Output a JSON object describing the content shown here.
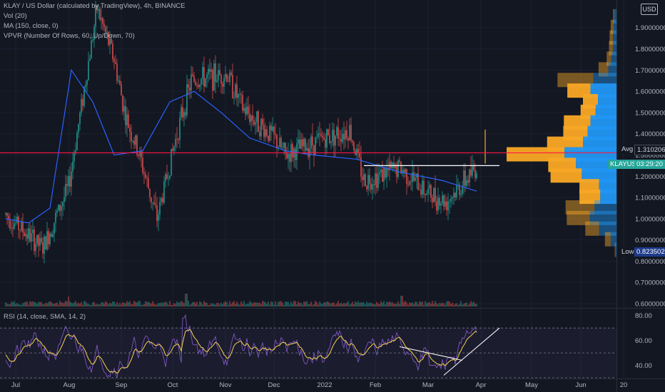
{
  "legend": {
    "title": "KLAY / US Dollar (calculated by TradingView), 4h, BINANCE",
    "vol": "Vol (20)",
    "ma": "MA (150, close, 0)",
    "vpvr": "VPVR (Number Of Rows, 60, Up/Down, 70)",
    "rsi": "RSI (14, close, SMA, 14, 2)"
  },
  "currency_label": "USD",
  "price_tags": {
    "avg_label": "Avg",
    "avg_value": "1.31020669",
    "symbol_label": "KLAYUSD",
    "countdown": "03:29:20",
    "low_label": "Low",
    "low_value": "0.82350299"
  },
  "colors": {
    "background": "#131722",
    "up": "#26a69a",
    "down": "#ef5350",
    "ma_line": "#2962ff",
    "rsi": "#7e57c2",
    "rsi_ma": "#f5d34f",
    "vpvr_up": "#2196f3",
    "vpvr_down": "#f9a825",
    "red_line": "#ff1744",
    "white_line": "#ffffff"
  },
  "chart_data": [
    {
      "type": "candlestick",
      "title": "KLAY / US Dollar (calculated by TradingView), 4h, BINANCE",
      "x_ticks": [
        "Jul",
        "Aug",
        "Sep",
        "Oct",
        "Nov",
        "Dec",
        "2022",
        "Feb",
        "Mar",
        "Apr",
        "May",
        "Jun",
        "20"
      ],
      "y_ticks": [
        "0.60000000",
        "0.70000000",
        "0.80000000",
        "0.90000000",
        "1.00000000",
        "1.10000000",
        "1.20000000",
        "1.30000000",
        "1.40000000",
        "1.50000000",
        "1.60000000",
        "1.70000000",
        "1.80000000",
        "1.90000000"
      ],
      "ylim": [
        0.58,
        2.03
      ],
      "key_points": [
        {
          "date": "Jul",
          "price": 1.02
        },
        {
          "date": "mid Jul",
          "price": 0.86
        },
        {
          "date": "late Jul",
          "price": 1.15
        },
        {
          "date": "mid Aug",
          "price": 1.99
        },
        {
          "date": "late Aug",
          "price": 1.75
        },
        {
          "date": "early Sep",
          "price": 1.48
        },
        {
          "date": "mid Sep",
          "price": 1.29
        },
        {
          "date": "late Sep",
          "price": 1.0
        },
        {
          "date": "early Oct",
          "price": 1.4
        },
        {
          "date": "mid Oct",
          "price": 1.65
        },
        {
          "date": "early Nov",
          "price": 1.68
        },
        {
          "date": "mid Nov",
          "price": 1.52
        },
        {
          "date": "early Dec",
          "price": 1.38
        },
        {
          "date": "mid Dec",
          "price": 1.3
        },
        {
          "date": "early Jan",
          "price": 1.38
        },
        {
          "date": "mid Jan",
          "price": 1.42
        },
        {
          "date": "late Jan",
          "price": 1.18
        },
        {
          "date": "mid Feb",
          "price": 1.24
        },
        {
          "date": "early Mar",
          "price": 1.12
        },
        {
          "date": "mid Mar",
          "price": 1.08
        },
        {
          "date": "late Mar",
          "price": 1.17
        },
        {
          "date": "Apr",
          "price": 1.25
        }
      ],
      "horizontal_lines": [
        {
          "label": "Avg",
          "value": 1.31020669,
          "color": "#ff1744"
        },
        {
          "label": "resistance",
          "value": 1.25,
          "color": "#ffffff"
        }
      ],
      "moving_average": {
        "name": "MA (150, close, 0)",
        "approx_values": [
          1.0,
          0.98,
          1.05,
          1.7,
          1.55,
          1.3,
          1.32,
          1.55,
          1.6,
          1.5,
          1.38,
          1.32,
          1.3,
          1.28,
          1.22,
          1.18,
          1.13
        ]
      },
      "volume_profile": [
        {
          "price": 1.95,
          "up": 0.04,
          "down": 0.02
        },
        {
          "price": 1.9,
          "up": 0.05,
          "down": 0.05
        },
        {
          "price": 1.85,
          "up": 0.06,
          "down": 0.06
        },
        {
          "price": 1.8,
          "up": 0.06,
          "down": 0.07
        },
        {
          "price": 1.75,
          "up": 0.09,
          "down": 0.08
        },
        {
          "price": 1.7,
          "up": 0.14,
          "down": 0.17
        },
        {
          "price": 1.65,
          "up": 0.4,
          "down": 0.62
        },
        {
          "price": 1.6,
          "up": 0.45,
          "down": 0.4
        },
        {
          "price": 1.55,
          "up": 0.32,
          "down": 0.26
        },
        {
          "price": 1.5,
          "up": 0.36,
          "down": 0.26
        },
        {
          "price": 1.45,
          "up": 0.45,
          "down": 0.46
        },
        {
          "price": 1.4,
          "up": 0.5,
          "down": 0.42
        },
        {
          "price": 1.35,
          "up": 0.58,
          "down": 0.62
        },
        {
          "price": 1.3,
          "up": 0.9,
          "down": 1.0
        },
        {
          "price": 1.25,
          "up": 0.7,
          "down": 0.48
        },
        {
          "price": 1.2,
          "up": 0.6,
          "down": 0.54
        },
        {
          "price": 1.15,
          "up": 0.3,
          "down": 0.34
        },
        {
          "price": 1.1,
          "up": 0.28,
          "down": 0.36
        },
        {
          "price": 1.05,
          "up": 0.38,
          "down": 0.5
        },
        {
          "price": 1.0,
          "up": 0.46,
          "down": 0.4
        },
        {
          "price": 0.95,
          "up": 0.3,
          "down": 0.24
        },
        {
          "price": 0.9,
          "up": 0.1,
          "down": 0.1
        },
        {
          "price": 0.85,
          "up": 0.02,
          "down": 0.01
        }
      ]
    },
    {
      "type": "volume",
      "title": "Vol (20)",
      "note": "volume histogram with spikes near mid Aug, early Oct and late Feb"
    },
    {
      "type": "line",
      "title": "RSI (14, close, SMA, 14, 2)",
      "y_ticks": [
        "40.00",
        "60.00",
        "80.00"
      ],
      "ylim": [
        30,
        85
      ],
      "bands": [
        30,
        50,
        70
      ],
      "trendlines": [
        {
          "name": "descending",
          "from": {
            "date": "Feb",
            "rsi": 55
          },
          "to": {
            "date": "mid Mar",
            "rsi": 44
          }
        },
        {
          "name": "ascending",
          "from": {
            "date": "mid Mar",
            "rsi": 32
          },
          "to": {
            "date": "mid Apr",
            "rsi": 70
          }
        }
      ]
    }
  ]
}
